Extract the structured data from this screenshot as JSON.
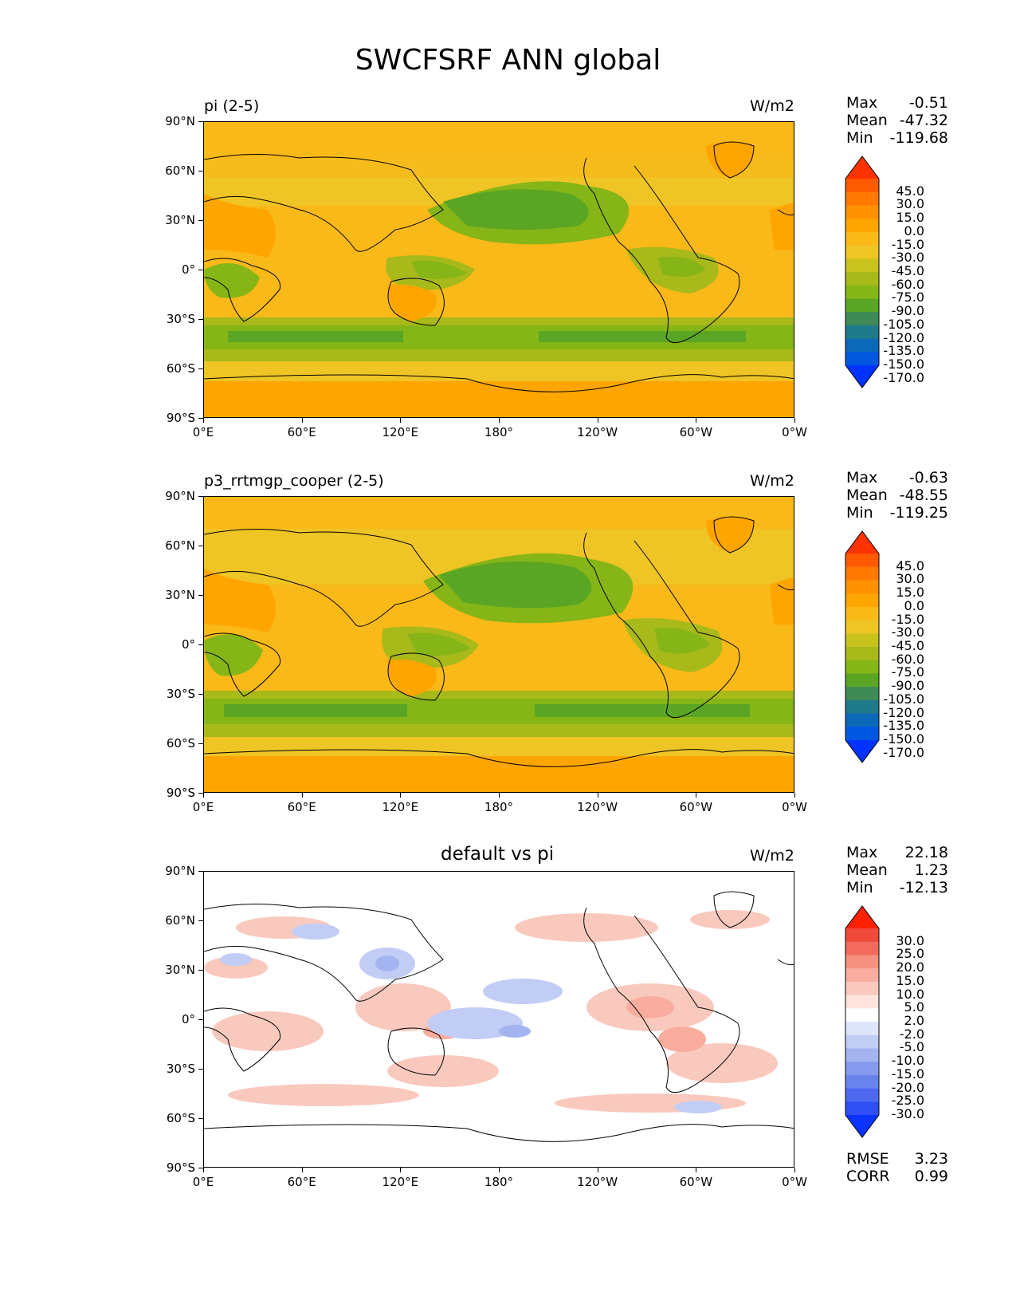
{
  "title": "SWCFSRF ANN global",
  "lat_ticks": [
    "90°N",
    "60°N",
    "30°N",
    "0°",
    "30°S",
    "60°S",
    "90°S"
  ],
  "lon_ticks": [
    "0°E",
    "60°E",
    "120°E",
    "180°",
    "120°W",
    "60°W",
    "0°W"
  ],
  "panels": [
    {
      "left_label": "pi (2-5)",
      "center_label": "",
      "units": "W/m2",
      "stats": {
        "max_label": "Max",
        "max": "-0.51",
        "mean_label": "Mean",
        "mean": "-47.32",
        "min_label": "Min",
        "min": "-119.68"
      },
      "colorbar": {
        "labels": [
          "45.0",
          "30.0",
          "15.0",
          "0.0",
          "-15.0",
          "-30.0",
          "-45.0",
          "-60.0",
          "-75.0",
          "-90.0",
          "-105.0",
          "-120.0",
          "-135.0",
          "-150.0",
          "-170.0"
        ],
        "colors": [
          "#ff3300",
          "#ff5a00",
          "#ff7800",
          "#ff9100",
          "#ffa500",
          "#f9b918",
          "#efc425",
          "#c9c31d",
          "#a8b91a",
          "#85b516",
          "#5aa624",
          "#3f8a56",
          "#1f7a8a",
          "#0b6ab8",
          "#0057e0",
          "#0033ff"
        ]
      }
    },
    {
      "left_label": "p3_rrtmgp_cooper (2-5)",
      "center_label": "",
      "units": "W/m2",
      "stats": {
        "max_label": "Max",
        "max": "-0.63",
        "mean_label": "Mean",
        "mean": "-48.55",
        "min_label": "Min",
        "min": "-119.25"
      },
      "colorbar": {
        "labels": [
          "45.0",
          "30.0",
          "15.0",
          "0.0",
          "-15.0",
          "-30.0",
          "-45.0",
          "-60.0",
          "-75.0",
          "-90.0",
          "-105.0",
          "-120.0",
          "-135.0",
          "-150.0",
          "-170.0"
        ],
        "colors": [
          "#ff3300",
          "#ff5a00",
          "#ff7800",
          "#ff9100",
          "#ffa500",
          "#f9b918",
          "#efc425",
          "#c9c31d",
          "#a8b91a",
          "#85b516",
          "#5aa624",
          "#3f8a56",
          "#1f7a8a",
          "#0b6ab8",
          "#0057e0",
          "#0033ff"
        ]
      }
    },
    {
      "left_label": "",
      "center_label": "default vs pi",
      "units": "W/m2",
      "stats": {
        "max_label": "Max",
        "max": "22.18",
        "mean_label": "Mean",
        "mean": "1.23",
        "min_label": "Min",
        "min": "-12.13"
      },
      "colorbar": {
        "labels": [
          "30.0",
          "25.0",
          "20.0",
          "15.0",
          "10.0",
          "5.0",
          "2.0",
          "-2.0",
          "-5.0",
          "-10.0",
          "-15.0",
          "-20.0",
          "-25.0",
          "-30.0"
        ],
        "colors": [
          "#ff2200",
          "#f24a3a",
          "#f36b5c",
          "#f6907f",
          "#f8ad9f",
          "#fac9be",
          "#fde4dc",
          "#ffffff",
          "#dfe6fb",
          "#c2cdf6",
          "#a4b4f1",
          "#879bee",
          "#6a82ec",
          "#4d69ef",
          "#2f4ff5",
          "#0a33ff"
        ]
      },
      "rmse_label": "RMSE",
      "rmse": "3.23",
      "corr_label": "CORR",
      "corr": "0.99"
    }
  ],
  "chart_data": [
    {
      "type": "heatmap",
      "title": "pi (2-5)",
      "units": "W/m2",
      "x_range_deg_east": [
        0,
        360
      ],
      "y_range_deg": [
        -90,
        90
      ],
      "summary": {
        "max": -0.51,
        "mean": -47.32,
        "min": -119.68
      },
      "levels": [
        45,
        30,
        15,
        0,
        -15,
        -30,
        -45,
        -60,
        -75,
        -90,
        -105,
        -120,
        -135,
        -150,
        -170
      ]
    },
    {
      "type": "heatmap",
      "title": "p3_rrtmgp_cooper (2-5)",
      "units": "W/m2",
      "x_range_deg_east": [
        0,
        360
      ],
      "y_range_deg": [
        -90,
        90
      ],
      "summary": {
        "max": -0.63,
        "mean": -48.55,
        "min": -119.25
      },
      "levels": [
        45,
        30,
        15,
        0,
        -15,
        -30,
        -45,
        -60,
        -75,
        -90,
        -105,
        -120,
        -135,
        -150,
        -170
      ]
    },
    {
      "type": "heatmap",
      "title": "default vs pi",
      "units": "W/m2",
      "x_range_deg_east": [
        0,
        360
      ],
      "y_range_deg": [
        -90,
        90
      ],
      "summary": {
        "max": 22.18,
        "mean": 1.23,
        "min": -12.13,
        "rmse": 3.23,
        "corr": 0.99
      },
      "levels": [
        30,
        25,
        20,
        15,
        10,
        5,
        2,
        -2,
        -5,
        -10,
        -15,
        -20,
        -25,
        -30
      ]
    }
  ]
}
